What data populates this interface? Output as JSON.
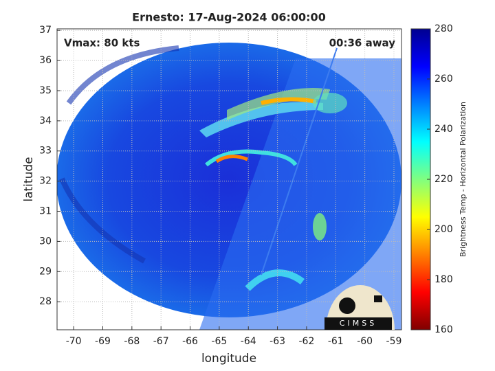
{
  "chart_data": {
    "type": "image",
    "title": "Ernesto: 17-Aug-2024 06:00:00",
    "annotations": [
      "Vmax: 80 kts",
      "00:36 away"
    ],
    "xlabel": "longitude",
    "ylabel": "latitude",
    "xlim": [
      -70.57,
      -58.74
    ],
    "xticks": [
      -70,
      -69,
      -68,
      -67,
      -66,
      -65,
      -64,
      -63,
      -62,
      -61,
      -60,
      -59
    ],
    "ylim": [
      27.07,
      37.05
    ],
    "yticks": [
      28,
      29,
      30,
      31,
      32,
      33,
      34,
      35,
      36,
      37
    ],
    "grid": true,
    "colorbar": {
      "label": "Brightness Temp - Horizontal Polarization",
      "lim": [
        160,
        280
      ],
      "ticks": [
        160,
        180,
        200,
        220,
        240,
        260,
        280
      ],
      "colormap": [
        "#800000",
        "#ff0000",
        "#ff8000",
        "#ffff00",
        "#80ff80",
        "#00ffff",
        "#0080ff",
        "#0000ff",
        "#000090"
      ]
    },
    "logo": "CIMSS"
  }
}
